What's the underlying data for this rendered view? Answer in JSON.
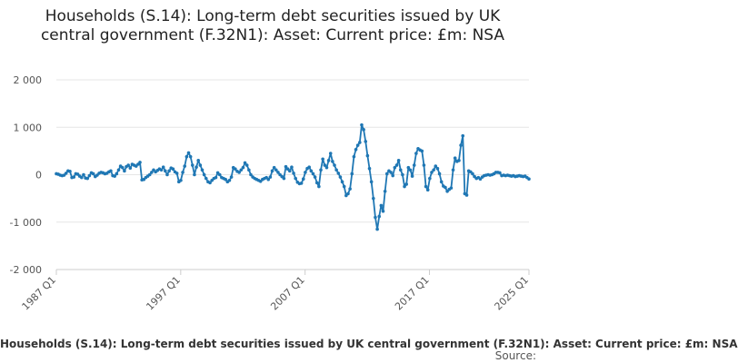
{
  "chart_data": {
    "type": "line",
    "title": "Households (S.14): Long-term debt securities issued by UK central government (F.32N1): Asset: Current price: £m: NSA",
    "xlabel": "",
    "ylabel": "",
    "x_tick_labels": [
      "1987 Q1",
      "1997 Q1",
      "2007 Q1",
      "2017 Q1",
      "2025 Q1"
    ],
    "y_tick_labels": [
      "2 000",
      "1 000",
      "0",
      "-1 000",
      "-2 000"
    ],
    "y_ticks": [
      2000,
      1000,
      0,
      -1000,
      -2000
    ],
    "ylim": [
      -2000,
      2000
    ],
    "x_start": "1987 Q1",
    "x_end": "2025 Q1",
    "grid": "horizontal",
    "legend": "bottom",
    "series": [
      {
        "name": "Households (S.14): Long-term debt securities issued by UK central government (F.32N1): Asset: Current price: £m: NSA",
        "color": "#1f77b4",
        "values": [
          20,
          10,
          -10,
          -20,
          -10,
          30,
          80,
          70,
          -60,
          -50,
          20,
          10,
          -30,
          -60,
          0,
          -70,
          -80,
          -20,
          40,
          20,
          -40,
          -10,
          30,
          50,
          40,
          20,
          30,
          60,
          80,
          -20,
          -30,
          20,
          100,
          180,
          150,
          80,
          170,
          200,
          140,
          220,
          200,
          180,
          220,
          260,
          -110,
          -100,
          -60,
          -30,
          0,
          50,
          100,
          60,
          90,
          120,
          100,
          160,
          80,
          0,
          80,
          140,
          120,
          60,
          30,
          -150,
          -120,
          50,
          180,
          380,
          460,
          380,
          200,
          0,
          160,
          300,
          200,
          100,
          0,
          -80,
          -150,
          -170,
          -120,
          -80,
          -60,
          40,
          0,
          -60,
          -80,
          -100,
          -150,
          -120,
          -50,
          150,
          120,
          70,
          50,
          100,
          150,
          250,
          200,
          100,
          0,
          -50,
          -80,
          -100,
          -120,
          -140,
          -100,
          -80,
          -60,
          -100,
          -50,
          80,
          150,
          100,
          50,
          0,
          -40,
          -80,
          170,
          120,
          80,
          160,
          30,
          -80,
          -160,
          -190,
          -180,
          -90,
          50,
          130,
          160,
          80,
          20,
          -50,
          -170,
          -250,
          100,
          330,
          200,
          150,
          300,
          450,
          280,
          200,
          100,
          30,
          -50,
          -150,
          -250,
          -440,
          -400,
          -300,
          20,
          380,
          530,
          620,
          680,
          1050,
          950,
          700,
          400,
          130,
          -150,
          -500,
          -900,
          -1150,
          -880,
          -650,
          -770,
          -350,
          20,
          80,
          50,
          -20,
          150,
          200,
          300,
          100,
          0,
          -250,
          -200,
          150,
          100,
          -30,
          200,
          450,
          550,
          520,
          500,
          200,
          -250,
          -320,
          -80,
          50,
          100,
          180,
          130,
          20,
          -150,
          -240,
          -270,
          -350,
          -310,
          -280,
          100,
          350,
          280,
          300,
          620,
          820,
          -400,
          -430,
          80,
          60,
          20,
          -40,
          -80,
          -60,
          -90,
          -50,
          -20,
          -10,
          0,
          -10,
          0,
          20,
          50,
          50,
          40,
          -20,
          -10,
          -20,
          -10,
          -20,
          -30,
          -20,
          -40,
          -30,
          -20,
          -30,
          -40,
          -30,
          -60,
          -90
        ]
      }
    ]
  },
  "legend_text": "Households (S.14): Long-term debt securities issued by UK central government (F.32N1): Asset: Current price: £m: NSA",
  "source_label": "Source:"
}
